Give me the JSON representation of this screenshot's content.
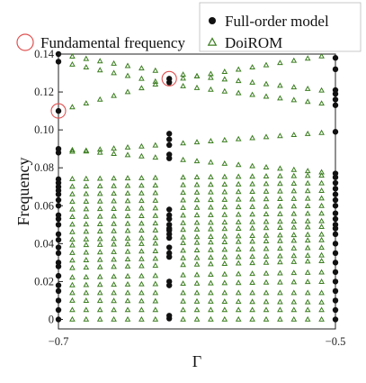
{
  "chart_data": {
    "type": "scatter",
    "xlabel": "Γ",
    "ylabel": "Frequency",
    "xlim": [
      -0.7,
      -0.5
    ],
    "ylim": [
      -0.005,
      0.14
    ],
    "x_ticks": [
      -0.7,
      -0.5
    ],
    "x_tick_labels": [
      "−0.7",
      "−0.5"
    ],
    "y_ticks": [
      0,
      0.02,
      0.04,
      0.06,
      0.08,
      0.1,
      0.12,
      0.14
    ],
    "y_tick_labels": [
      "0",
      "0.02",
      "0.04",
      "0.06",
      "0.08",
      "0.10",
      "0.12",
      "0.14"
    ],
    "grid": false,
    "legend": {
      "placement": "top-right",
      "entries": [
        "Full-order model",
        "DoiROM"
      ]
    },
    "annotation_legend": {
      "placement": "top-left",
      "label": "Fundamental frequency",
      "color": "#e05050"
    },
    "colors": {
      "full_order": "#111111",
      "doirom": "#3a7d1e",
      "circle": "#e05050"
    },
    "full_order_x": [
      -0.7,
      -0.62,
      -0.5
    ],
    "full_order_y": {
      "-0.7": [
        0,
        0.005,
        0.01,
        0.015,
        0.018,
        0.023,
        0.028,
        0.03,
        0.035,
        0.038,
        0.042,
        0.045,
        0.05,
        0.053,
        0.055,
        0.06,
        0.063,
        0.066,
        0.068,
        0.07,
        0.072,
        0.074,
        0.088,
        0.09,
        0.11,
        0.136,
        0.14
      ],
      "-0.62": [
        0.0005,
        0.002,
        0.018,
        0.02,
        0.033,
        0.035,
        0.038,
        0.043,
        0.045,
        0.047,
        0.048,
        0.05,
        0.053,
        0.055,
        0.058,
        0.085,
        0.087,
        0.092,
        0.095,
        0.098,
        0.125,
        0.127
      ],
      "-0.5": [
        0,
        0.005,
        0.01,
        0.015,
        0.02,
        0.025,
        0.03,
        0.035,
        0.04,
        0.045,
        0.048,
        0.05,
        0.053,
        0.056,
        0.06,
        0.063,
        0.066,
        0.069,
        0.072,
        0.075,
        0.077,
        0.099,
        0.113,
        0.116,
        0.119,
        0.121,
        0.132,
        0.138
      ]
    },
    "circled_points": [
      {
        "x": -0.7,
        "y": 0.11
      },
      {
        "x": -0.62,
        "y": 0.127
      }
    ],
    "doirom_x": [
      -0.69,
      -0.68,
      -0.67,
      -0.66,
      -0.65,
      -0.64,
      -0.63,
      -0.61,
      -0.6,
      -0.59,
      -0.58,
      -0.57,
      -0.56,
      -0.55,
      -0.54,
      -0.53,
      -0.52,
      -0.51
    ],
    "doirom_bands": [
      [
        [
          -0.7,
          0.0
        ],
        [
          -0.5,
          0.0
        ]
      ],
      [
        [
          -0.7,
          0.005
        ],
        [
          -0.5,
          0.005
        ]
      ],
      [
        [
          -0.7,
          0.01
        ],
        [
          -0.5,
          0.009
        ]
      ],
      [
        [
          -0.7,
          0.014
        ],
        [
          -0.5,
          0.014
        ]
      ],
      [
        [
          -0.7,
          0.018
        ],
        [
          -0.5,
          0.02
        ]
      ],
      [
        [
          -0.7,
          0.022
        ],
        [
          -0.5,
          0.025
        ]
      ],
      [
        [
          -0.7,
          0.027
        ],
        [
          -0.5,
          0.031
        ]
      ],
      [
        [
          -0.7,
          0.031
        ],
        [
          -0.5,
          0.034
        ]
      ],
      [
        [
          -0.7,
          0.035
        ],
        [
          -0.5,
          0.038
        ]
      ],
      [
        [
          -0.7,
          0.039
        ],
        [
          -0.5,
          0.042
        ]
      ],
      [
        [
          -0.7,
          0.042
        ],
        [
          -0.5,
          0.045
        ]
      ],
      [
        [
          -0.7,
          0.046
        ],
        [
          -0.5,
          0.049
        ]
      ],
      [
        [
          -0.7,
          0.05
        ],
        [
          -0.5,
          0.052
        ]
      ],
      [
        [
          -0.7,
          0.054
        ],
        [
          -0.5,
          0.056
        ]
      ],
      [
        [
          -0.7,
          0.058
        ],
        [
          -0.5,
          0.06
        ]
      ],
      [
        [
          -0.7,
          0.062
        ],
        [
          -0.5,
          0.064
        ]
      ],
      [
        [
          -0.7,
          0.066
        ],
        [
          -0.5,
          0.068
        ]
      ],
      [
        [
          -0.7,
          0.07
        ],
        [
          -0.5,
          0.072
        ]
      ],
      [
        [
          -0.7,
          0.074
        ],
        [
          -0.5,
          0.076
        ]
      ],
      [
        [
          -0.7,
          0.088
        ],
        [
          -0.5,
          0.099
        ]
      ],
      [
        [
          -0.7,
          0.09
        ],
        [
          -0.5,
          0.077
        ]
      ],
      [
        [
          -0.7,
          0.11
        ],
        [
          -0.62,
          0.126
        ],
        [
          -0.5,
          0.14
        ]
      ],
      [
        [
          -0.7,
          0.136
        ],
        [
          -0.62,
          0.124
        ],
        [
          -0.5,
          0.113
        ]
      ],
      [
        [
          -0.7,
          0.14
        ],
        [
          -0.62,
          0.13
        ],
        [
          -0.5,
          0.12
        ]
      ]
    ]
  }
}
